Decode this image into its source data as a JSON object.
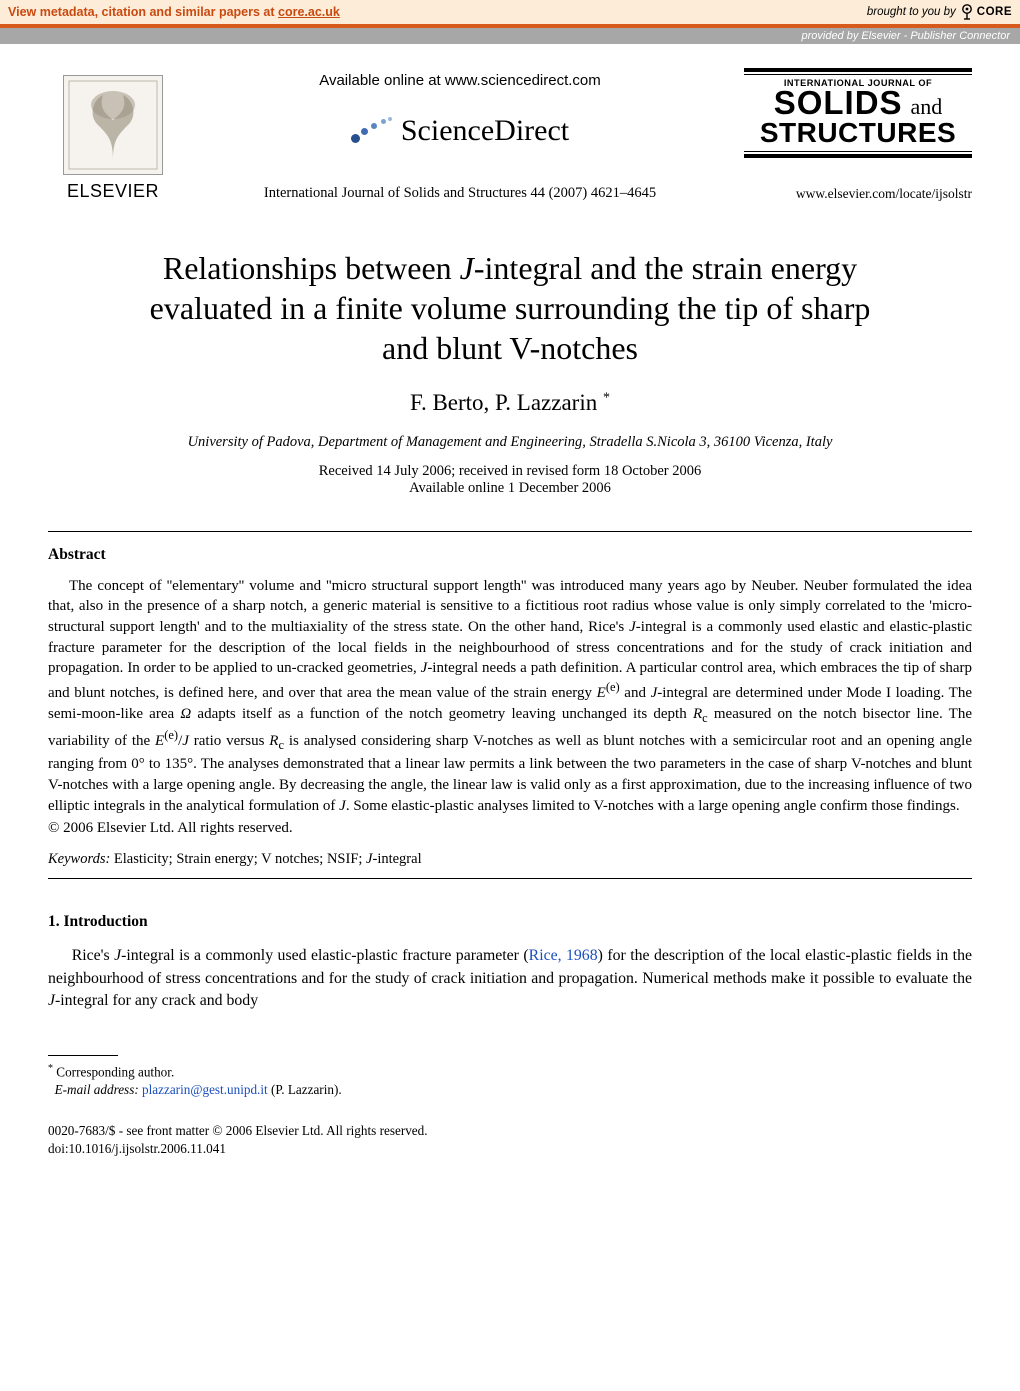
{
  "banner": {
    "left_prefix": "View metadata, citation and similar papers at ",
    "core_link": "core.ac.uk",
    "right_prefix": "brought to you by ",
    "core_brand": "CORE",
    "provided_prefix": "provided by ",
    "provider": "Elsevier - Publisher Connector"
  },
  "header": {
    "elsevier": "ELSEVIER",
    "available_online": "Available online at www.sciencedirect.com",
    "sciencedirect": "ScienceDirect",
    "journal_ref": "International Journal of Solids and Structures 44 (2007) 4621–4645",
    "ijss_line1": "INTERNATIONAL JOURNAL OF",
    "ijss_solids": "SOLIDS",
    "ijss_and": "and",
    "ijss_struct": "STRUCTURES",
    "locate_url": "www.elsevier.com/locate/ijsolstr"
  },
  "title": {
    "line1": "Relationships between ",
    "j_integral": "J",
    "line1b": "-integral and the strain energy",
    "line2": "evaluated in a finite volume surrounding the tip of sharp",
    "line3": "and blunt V-notches"
  },
  "authors": {
    "list": "F. Berto, P. Lazzarin ",
    "mark": "*"
  },
  "affiliation": "University of Padova, Department of Management and Engineering, Stradella S.Nicola 3, 36100 Vicenza, Italy",
  "dates": {
    "received": "Received 14 July 2006; received in revised form 18 October 2006",
    "available": "Available online 1 December 2006"
  },
  "abstract": {
    "heading": "Abstract",
    "body_html": "The concept of ''elementary'' volume and ''micro structural support length'' was introduced many years ago by Neuber. Neuber formulated the idea that, also in the presence of a sharp notch, a generic material is sensitive to a fictitious root radius whose value is only simply correlated to the 'micro-structural support length' and to the multiaxiality of the stress state. On the other hand, Rice's <span class=\"italic\">J</span>-integral is a commonly used elastic and elastic-plastic fracture parameter for the description of the local fields in the neighbourhood of stress concentrations and for the study of crack initiation and propagation. In order to be applied to un-cracked geometries, <span class=\"italic\">J</span>-integral needs a path definition. A particular control area, which embraces the tip of sharp and blunt notches, is defined here, and over that area the mean value of the strain energy <span class=\"italic\">E</span><sup>(e)</sup> and <span class=\"italic\">J</span>-integral are determined under Mode I loading. The semi-moon-like area <span class=\"italic\">Ω</span> adapts itself as a function of the notch geometry leaving unchanged its depth <span class=\"italic\">R</span><sub>c</sub> measured on the notch bisector line. The variability of the <span class=\"italic\">E</span><sup>(e)</sup>/<span class=\"italic\">J</span> ratio versus <span class=\"italic\">R</span><sub>c</sub> is analysed considering sharp V-notches as well as blunt notches with a semicircular root and an opening angle ranging from 0° to 135°. The analyses demonstrated that a linear law permits a link between the two parameters in the case of sharp V-notches and blunt V-notches with a large opening angle. By decreasing the angle, the linear law is valid only as a first approximation, due to the increasing influence of two elliptic integrals in the analytical formulation of <span class=\"italic\">J</span>. Some elastic-plastic analyses limited to V-notches with a large opening angle confirm those findings.",
    "copyright": "© 2006 Elsevier Ltd. All rights reserved."
  },
  "keywords": {
    "label": "Keywords:",
    "text": " Elasticity; Strain energy; V notches; NSIF; ",
    "j_term": "J",
    "tail": "-integral"
  },
  "intro": {
    "heading": "1. Introduction",
    "body_pre": "Rice's ",
    "j": "J",
    "body_mid": "-integral is a commonly used elastic-plastic fracture parameter (",
    "ref": "Rice, 1968",
    "body_post": ") for the description of the local elastic-plastic fields in the neighbourhood of stress concentrations and for the study of crack initiation and propagation. Numerical methods make it possible to evaluate the ",
    "j2": "J",
    "body_tail": "-integral for any crack and body"
  },
  "footnote": {
    "mark": "*",
    "corresponding": " Corresponding author.",
    "email_label": "E-mail address:",
    "email": "plazzarin@gest.unipd.it",
    "email_tail": " (P. Lazzarin)."
  },
  "footer": {
    "issn": "0020-7683/$ - see front matter © 2006 Elsevier Ltd. All rights reserved.",
    "doi": "doi:10.1016/j.ijsolstr.2006.11.041"
  },
  "colors": {
    "banner_bg": "#fdecd8",
    "banner_border": "#d85a1a",
    "banner_text": "#c94a10",
    "provided_bg": "#a7a7a7",
    "link": "#1a4fbf"
  }
}
